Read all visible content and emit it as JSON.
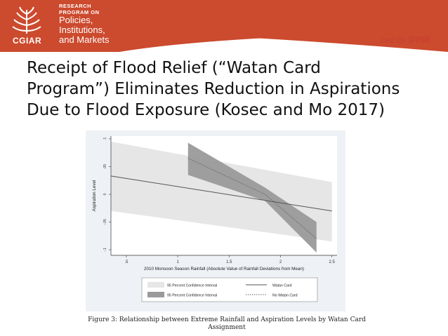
{
  "header": {
    "program_line1": "RESEARCH",
    "program_line2": "PROGRAM ON",
    "program_line3": "Policies,",
    "program_line4": "Institutions,",
    "program_line5": "and Markets",
    "logo_text": "CGIAR",
    "led_by_prefix": "Led by",
    "led_by_org": "IFPRI",
    "brand_color": "#cc4a2e"
  },
  "slide": {
    "title_line1": "Receipt of Flood Relief (“Watan Card",
    "title_line2": "Program”) Eliminates Reduction in Aspirations",
    "title_line3": "Due to Flood Exposure (Kosec and Mo 2017)"
  },
  "caption": {
    "line1": "Figure 3: Relationship between Extreme Rainfall and Aspiration Levels by Watan Card",
    "line2": "Assignment"
  },
  "chart_data": {
    "type": "line",
    "xlabel": "2010 Monsoon Season Rainfall (Absolute Value of Rainfall Deviations from Mean)",
    "ylabel": "Aspiration Level",
    "x_ticks": [
      0.5,
      1,
      1.5,
      2,
      2.5
    ],
    "x_tick_labels": [
      ".5",
      "1",
      "1.5",
      "2",
      "2.5"
    ],
    "y_ticks": [
      -0.1,
      -0.05,
      0,
      0.05,
      0.1
    ],
    "y_tick_labels": [
      "-.1",
      "-.05",
      "0",
      ".05",
      ".1"
    ],
    "xlim": [
      0.35,
      2.55
    ],
    "ylim": [
      -0.11,
      0.105
    ],
    "grid": false,
    "legend": {
      "position": "bottom",
      "entries": [
        "95 Percent Confidence Interval",
        "Watan Card",
        "95 Percent Confidence Interval",
        "No Watan Card"
      ]
    },
    "series": [
      {
        "name": "Watan Card",
        "style": "solid",
        "color": "#555555",
        "band_color": "#e6e6e6",
        "x": [
          0.35,
          2.5
        ],
        "y": [
          0.033,
          -0.03
        ],
        "ci_upper": [
          0.095,
          0.022
        ],
        "ci_lower": [
          -0.03,
          -0.085
        ]
      },
      {
        "name": "No Watan Card",
        "style": "dotted",
        "color": "#666666",
        "band_color": "#9a9a9a",
        "x": [
          1.1,
          1.85,
          2.35
        ],
        "y": [
          0.065,
          0,
          -0.08
        ],
        "ci_upper": [
          0.093,
          0.012,
          -0.05
        ],
        "ci_lower": [
          0.035,
          -0.012,
          -0.105
        ]
      }
    ]
  }
}
